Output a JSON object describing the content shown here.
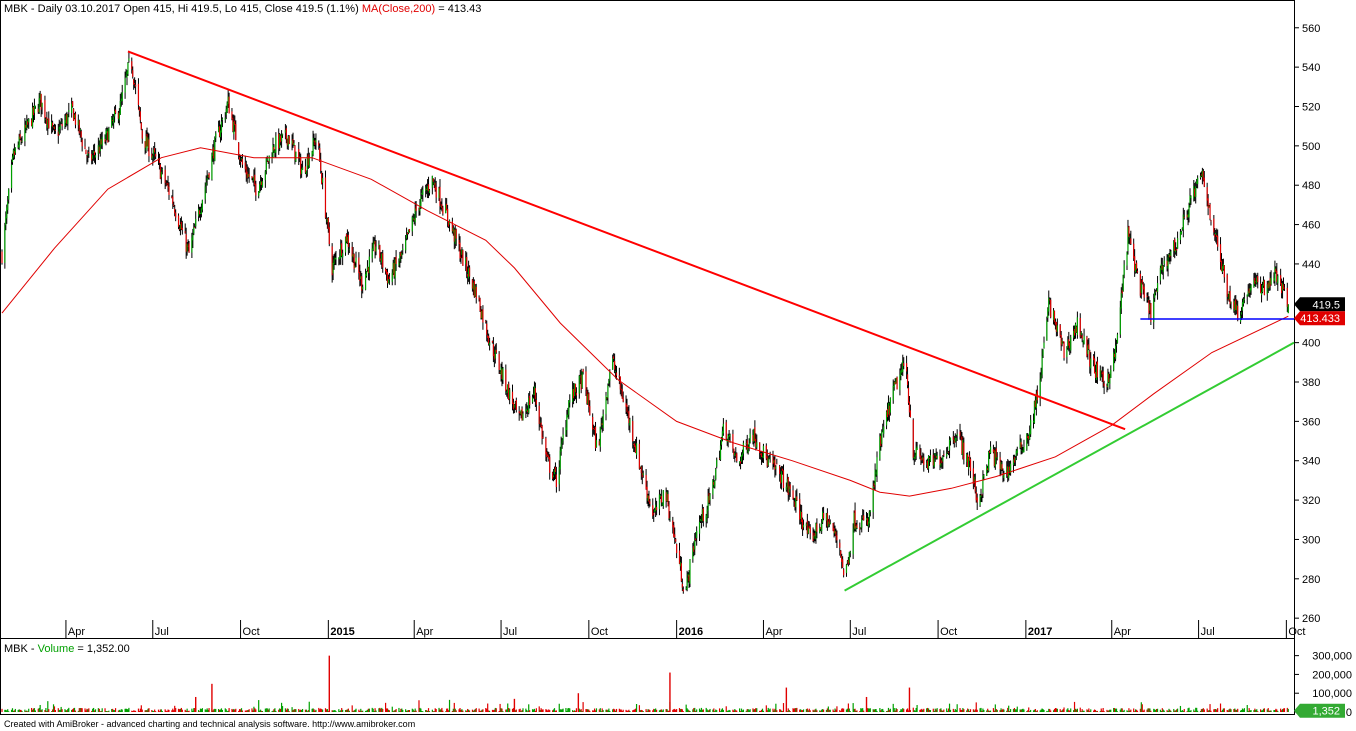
{
  "header": {
    "symbol": "MBK",
    "period": "Daily",
    "date": "03.10.2017",
    "open": "415",
    "hi": "419.5",
    "lo": "415",
    "close": "419.5",
    "change": "(1.1%)",
    "ma_label": "MA(Close,200)",
    "ma_value": "413.43"
  },
  "volume_header": {
    "symbol": "MBK",
    "label": "Volume",
    "value": "1,352.00"
  },
  "footer": "Created with AmiBroker - advanced charting and technical analysis software. http://www.amibroker.com",
  "colors": {
    "up": "#00a000",
    "down": "#e00000",
    "ma": "#e00000",
    "resistance": "#ff0000",
    "support": "#33cc33",
    "horizontal": "#0000ff",
    "last_price_tag": "#000000",
    "ma_tag": "#e00000",
    "volume_tag": "#33aa33"
  },
  "chart_data": {
    "type": "candlestick",
    "price_axis": {
      "ylim": [
        255,
        567
      ],
      "ticks": [
        260,
        280,
        300,
        320,
        340,
        360,
        380,
        400,
        420,
        440,
        460,
        480,
        500,
        520,
        540,
        560
      ]
    },
    "volume_axis": {
      "ylim": [
        0,
        330000
      ],
      "ticks": [
        0,
        100000,
        200000,
        300000
      ],
      "tick_labels": [
        "0",
        "100,000",
        "200,000",
        "300,000"
      ]
    },
    "time_axis": {
      "start": "2014-01-24",
      "end": "2017-10-09",
      "ticks": [
        {
          "date": "2014-04-01",
          "label": "Apr",
          "bold": false
        },
        {
          "date": "2014-07-01",
          "label": "Jul",
          "bold": false
        },
        {
          "date": "2014-10-01",
          "label": "Oct",
          "bold": false
        },
        {
          "date": "2015-01-01",
          "label": "2015",
          "bold": true
        },
        {
          "date": "2015-04-01",
          "label": "Apr",
          "bold": false
        },
        {
          "date": "2015-07-01",
          "label": "Jul",
          "bold": false
        },
        {
          "date": "2015-10-01",
          "label": "Oct",
          "bold": false
        },
        {
          "date": "2016-01-01",
          "label": "2016",
          "bold": true
        },
        {
          "date": "2016-04-01",
          "label": "Apr",
          "bold": false
        },
        {
          "date": "2016-07-01",
          "label": "Jul",
          "bold": false
        },
        {
          "date": "2016-10-01",
          "label": "Oct",
          "bold": false
        },
        {
          "date": "2017-01-01",
          "label": "2017",
          "bold": true
        },
        {
          "date": "2017-04-01",
          "label": "Apr",
          "bold": false
        },
        {
          "date": "2017-07-01",
          "label": "Jul",
          "bold": false
        },
        {
          "date": "2017-10-01",
          "label": "Oct",
          "bold": false
        }
      ]
    },
    "close_path": [
      [
        "2014-01-24",
        445
      ],
      [
        "2014-02-05",
        495
      ],
      [
        "2014-02-20",
        510
      ],
      [
        "2014-03-05",
        523
      ],
      [
        "2014-03-20",
        505
      ],
      [
        "2014-04-08",
        518
      ],
      [
        "2014-04-25",
        492
      ],
      [
        "2014-05-12",
        503
      ],
      [
        "2014-05-28",
        520
      ],
      [
        "2014-06-08",
        545
      ],
      [
        "2014-06-20",
        505
      ],
      [
        "2014-07-05",
        492
      ],
      [
        "2014-07-22",
        472
      ],
      [
        "2014-08-08",
        445
      ],
      [
        "2014-08-20",
        470
      ],
      [
        "2014-09-05",
        502
      ],
      [
        "2014-09-18",
        522
      ],
      [
        "2014-10-03",
        490
      ],
      [
        "2014-10-18",
        478
      ],
      [
        "2014-11-05",
        500
      ],
      [
        "2014-11-20",
        505
      ],
      [
        "2014-12-05",
        487
      ],
      [
        "2014-12-20",
        505
      ],
      [
        "2015-01-05",
        438
      ],
      [
        "2015-01-20",
        454
      ],
      [
        "2015-02-05",
        430
      ],
      [
        "2015-02-20",
        450
      ],
      [
        "2015-03-05",
        432
      ],
      [
        "2015-03-20",
        445
      ],
      [
        "2015-04-05",
        470
      ],
      [
        "2015-04-20",
        483
      ],
      [
        "2015-05-05",
        465
      ],
      [
        "2015-05-20",
        445
      ],
      [
        "2015-06-05",
        425
      ],
      [
        "2015-06-20",
        400
      ],
      [
        "2015-07-05",
        380
      ],
      [
        "2015-07-20",
        360
      ],
      [
        "2015-08-05",
        375
      ],
      [
        "2015-08-18",
        340
      ],
      [
        "2015-08-28",
        330
      ],
      [
        "2015-09-10",
        370
      ],
      [
        "2015-09-25",
        382
      ],
      [
        "2015-10-10",
        345
      ],
      [
        "2015-10-25",
        392
      ],
      [
        "2015-11-10",
        365
      ],
      [
        "2015-11-25",
        335
      ],
      [
        "2015-12-08",
        312
      ],
      [
        "2015-12-20",
        325
      ],
      [
        "2015-12-30",
        300
      ],
      [
        "2016-01-10",
        272
      ],
      [
        "2016-01-22",
        305
      ],
      [
        "2016-02-05",
        320
      ],
      [
        "2016-02-20",
        358
      ],
      [
        "2016-03-05",
        338
      ],
      [
        "2016-03-20",
        355
      ],
      [
        "2016-04-05",
        340
      ],
      [
        "2016-04-20",
        332
      ],
      [
        "2016-05-05",
        318
      ],
      [
        "2016-05-20",
        300
      ],
      [
        "2016-06-05",
        312
      ],
      [
        "2016-06-20",
        297
      ],
      [
        "2016-06-25",
        279
      ],
      [
        "2016-07-05",
        310
      ],
      [
        "2016-07-20",
        308
      ],
      [
        "2016-08-01",
        348
      ],
      [
        "2016-08-15",
        375
      ],
      [
        "2016-08-28",
        390
      ],
      [
        "2016-09-05",
        345
      ],
      [
        "2016-09-20",
        338
      ],
      [
        "2016-10-05",
        342
      ],
      [
        "2016-10-20",
        355
      ],
      [
        "2016-11-05",
        335
      ],
      [
        "2016-11-12",
        318
      ],
      [
        "2016-11-25",
        345
      ],
      [
        "2016-12-10",
        333
      ],
      [
        "2016-12-25",
        345
      ],
      [
        "2017-01-05",
        355
      ],
      [
        "2017-01-15",
        378
      ],
      [
        "2017-01-25",
        420
      ],
      [
        "2017-02-10",
        395
      ],
      [
        "2017-02-25",
        410
      ],
      [
        "2017-03-10",
        390
      ],
      [
        "2017-03-25",
        378
      ],
      [
        "2017-04-05",
        395
      ],
      [
        "2017-04-18",
        455
      ],
      [
        "2017-05-01",
        428
      ],
      [
        "2017-05-12",
        415
      ],
      [
        "2017-05-25",
        440
      ],
      [
        "2017-06-08",
        450
      ],
      [
        "2017-06-22",
        472
      ],
      [
        "2017-07-05",
        485
      ],
      [
        "2017-07-18",
        455
      ],
      [
        "2017-08-01",
        425
      ],
      [
        "2017-08-12",
        415
      ],
      [
        "2017-08-25",
        430
      ],
      [
        "2017-09-08",
        428
      ],
      [
        "2017-09-20",
        435
      ],
      [
        "2017-10-03",
        419.5
      ]
    ],
    "ma_path": [
      [
        "2014-01-24",
        415
      ],
      [
        "2014-03-20",
        448
      ],
      [
        "2014-05-15",
        478
      ],
      [
        "2014-07-10",
        494
      ],
      [
        "2014-08-20",
        499
      ],
      [
        "2014-10-15",
        494
      ],
      [
        "2014-12-15",
        494
      ],
      [
        "2015-02-15",
        483
      ],
      [
        "2015-04-15",
        467
      ],
      [
        "2015-06-15",
        452
      ],
      [
        "2015-07-15",
        438
      ],
      [
        "2015-09-01",
        410
      ],
      [
        "2015-11-01",
        381
      ],
      [
        "2016-01-01",
        360
      ],
      [
        "2016-03-01",
        349
      ],
      [
        "2016-05-01",
        340
      ],
      [
        "2016-07-01",
        330
      ],
      [
        "2016-08-01",
        324
      ],
      [
        "2016-09-01",
        322
      ],
      [
        "2016-10-15",
        326
      ],
      [
        "2016-12-01",
        332
      ],
      [
        "2017-02-01",
        342
      ],
      [
        "2017-04-01",
        358
      ],
      [
        "2017-05-15",
        374
      ],
      [
        "2017-07-15",
        395
      ],
      [
        "2017-10-03",
        413.43
      ]
    ],
    "trendlines": [
      {
        "name": "resistance",
        "from": [
          "2014-06-05",
          548
        ],
        "to": [
          "2017-04-15",
          356
        ],
        "color": "#ff0000"
      },
      {
        "name": "support",
        "from": [
          "2016-06-25",
          274
        ],
        "to": [
          "2017-10-09",
          400
        ],
        "color": "#33cc33"
      },
      {
        "name": "horizontal",
        "from": [
          "2017-05-01",
          412
        ],
        "to": [
          "2017-10-09",
          412
        ],
        "color": "#0000ff"
      }
    ],
    "volume_spikes": [
      [
        "2015-01-02",
        300000
      ],
      [
        "2014-09-01",
        150000
      ],
      [
        "2014-08-15",
        80000
      ],
      [
        "2015-07-15",
        70000
      ],
      [
        "2015-09-20",
        100000
      ],
      [
        "2015-12-25",
        210000
      ],
      [
        "2016-09-01",
        130000
      ],
      [
        "2016-04-25",
        130000
      ],
      [
        "2016-07-18",
        80000
      ]
    ],
    "last_price_tag": "419.5",
    "ma_tag": "413.433",
    "volume_tag": "1,352"
  }
}
